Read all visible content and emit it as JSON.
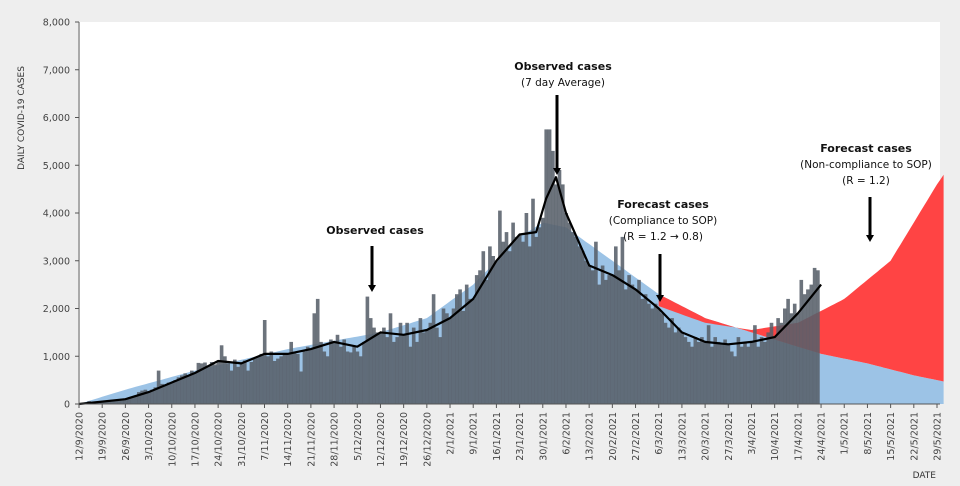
{
  "chart_data": {
    "type": "bar",
    "title": "",
    "xlabel": "DATE",
    "ylabel": "DAILY COVID-19 CASES",
    "ylim": [
      0,
      8000
    ],
    "y_ticks": [
      "0",
      "1,000",
      "2,000",
      "3,000",
      "4,000",
      "5,000",
      "6,000",
      "7,000",
      "8,000"
    ],
    "x_ticks": [
      "12/9/2020",
      "19/9/2020",
      "26/9/2020",
      "3/10/2020",
      "10/10/2020",
      "17/10/2020",
      "24/10/2020",
      "31/10/2020",
      "7/11/2020",
      "14/11/2020",
      "21/11/2020",
      "28/11/2020",
      "5/12/2020",
      "12/12/2020",
      "19/12/2020",
      "26/12/2020",
      "2/1/2021",
      "9/1/2021",
      "16/1/2021",
      "23/1/2021",
      "30/1/2021",
      "6/2/2021",
      "13/2/2021",
      "20/2/2021",
      "27/2/2021",
      "6/3/2021",
      "13/3/2021",
      "20/3/2021",
      "27/3/2021",
      "3/4/2021",
      "10/4/2021",
      "17/4/2021",
      "24/4/2021",
      "1/5/2021",
      "8/5/2021",
      "15/5/2021",
      "22/5/2021",
      "29/5/2021"
    ],
    "x_unit": "days since 12/9/2020",
    "series": [
      {
        "name": "Observed cases",
        "type": "bar",
        "color": "#5f6770",
        "values": [
          0,
          10,
          20,
          60,
          30,
          20,
          40,
          50,
          60,
          80,
          90,
          70,
          100,
          110,
          100,
          120,
          140,
          180,
          250,
          280,
          300,
          260,
          300,
          350,
          700,
          420,
          400,
          450,
          450,
          500,
          560,
          600,
          640,
          600,
          700,
          650,
          860,
          850,
          870,
          800,
          880,
          830,
          900,
          1230,
          1000,
          850,
          700,
          930,
          780,
          850,
          910,
          700,
          880,
          950,
          1000,
          1050,
          1760,
          1000,
          1100,
          900,
          950,
          1000,
          1050,
          1050,
          1300,
          1100,
          1050,
          680,
          1100,
          1200,
          1150,
          1900,
          2200,
          1300,
          1100,
          1000,
          1350,
          1300,
          1450,
          1200,
          1350,
          1100,
          1080,
          1200,
          1100,
          1000,
          1300,
          2250,
          1800,
          1600,
          1500,
          1500,
          1600,
          1400,
          1900,
          1300,
          1400,
          1700,
          1450,
          1700,
          1200,
          1600,
          1300,
          1800,
          1500,
          1550,
          1700,
          2300,
          1600,
          1400,
          2000,
          1900,
          1800,
          2000,
          2300,
          2400,
          1950,
          2500,
          2200,
          2200,
          2700,
          2800,
          3200,
          2600,
          3300,
          3100,
          3000,
          4050,
          3400,
          3600,
          3200,
          3800,
          3500,
          3550,
          3400,
          4000,
          3300,
          4300,
          3500,
          3700,
          3900,
          5750,
          5750,
          5300,
          4600,
          4900,
          4600,
          4000,
          3800,
          3600,
          3500,
          3300,
          3200,
          3000,
          2900,
          2800,
          3400,
          2500,
          2900,
          2600,
          2700,
          2700,
          3300,
          2800,
          3500,
          2400,
          2700,
          2500,
          2400,
          2600,
          2200,
          2300,
          2100,
          2000,
          2100,
          2000,
          1900,
          1700,
          1600,
          1800,
          1500,
          1600,
          1500,
          1400,
          1300,
          1200,
          1400,
          1300,
          1400,
          1300,
          1650,
          1200,
          1400,
          1300,
          1250,
          1350,
          1250,
          1100,
          1000,
          1400,
          1200,
          1300,
          1200,
          1300,
          1650,
          1200,
          1400,
          1300,
          1500,
          1700,
          1400,
          1800,
          1700,
          2000,
          2200,
          1900,
          2100,
          1900,
          2600,
          2300,
          2400,
          2500,
          2850,
          2800
        ]
      },
      {
        "name": "Observed cases (7 day Average)",
        "type": "line",
        "color": "#000000",
        "points": [
          [
            0,
            0
          ],
          [
            7,
            50
          ],
          [
            14,
            100
          ],
          [
            21,
            250
          ],
          [
            28,
            450
          ],
          [
            35,
            650
          ],
          [
            42,
            900
          ],
          [
            49,
            850
          ],
          [
            56,
            1050
          ],
          [
            63,
            1050
          ],
          [
            70,
            1150
          ],
          [
            77,
            1300
          ],
          [
            84,
            1200
          ],
          [
            91,
            1500
          ],
          [
            98,
            1450
          ],
          [
            105,
            1550
          ],
          [
            112,
            1800
          ],
          [
            119,
            2200
          ],
          [
            126,
            3000
          ],
          [
            133,
            3550
          ],
          [
            138,
            3600
          ],
          [
            141,
            4300
          ],
          [
            144,
            4750
          ],
          [
            147,
            4000
          ],
          [
            154,
            2900
          ],
          [
            161,
            2700
          ],
          [
            168,
            2400
          ],
          [
            175,
            2000
          ],
          [
            182,
            1500
          ],
          [
            189,
            1300
          ],
          [
            196,
            1250
          ],
          [
            203,
            1300
          ],
          [
            210,
            1400
          ],
          [
            217,
            1900
          ],
          [
            224,
            2500
          ]
        ]
      },
      {
        "name": "Forecast cases (Compliance to SOP)",
        "type": "area",
        "color": "#9cc3e6",
        "points": [
          [
            0,
            0
          ],
          [
            14,
            300
          ],
          [
            35,
            700
          ],
          [
            63,
            1150
          ],
          [
            91,
            1500
          ],
          [
            105,
            1800
          ],
          [
            119,
            2500
          ],
          [
            133,
            3500
          ],
          [
            140,
            3800
          ],
          [
            147,
            3700
          ],
          [
            161,
            3000
          ],
          [
            175,
            2300
          ],
          [
            189,
            1800
          ],
          [
            203,
            1500
          ],
          [
            224,
            1050
          ],
          [
            238,
            850
          ],
          [
            252,
            600
          ],
          [
            266,
            400
          ]
        ]
      },
      {
        "name": "Forecast cases (Non-compliance to SOP)",
        "type": "area",
        "color": "#ff4444",
        "points": [
          [
            175,
            2050
          ],
          [
            189,
            1700
          ],
          [
            203,
            1550
          ],
          [
            217,
            1700
          ],
          [
            231,
            2200
          ],
          [
            245,
            3000
          ],
          [
            259,
            4600
          ],
          [
            261,
            4800
          ]
        ]
      }
    ],
    "annotations": [
      {
        "title": "Observed cases",
        "lines": []
      },
      {
        "title": "Observed cases",
        "lines": [
          "(7 day Average)"
        ]
      },
      {
        "title": "Forecast cases",
        "lines": [
          "(Compliance to SOP)",
          "(R = 1.2 → 0.8)"
        ]
      },
      {
        "title": "Forecast cases",
        "lines": [
          "(Non-compliance to SOP)",
          "(R = 1.2)"
        ]
      }
    ]
  }
}
